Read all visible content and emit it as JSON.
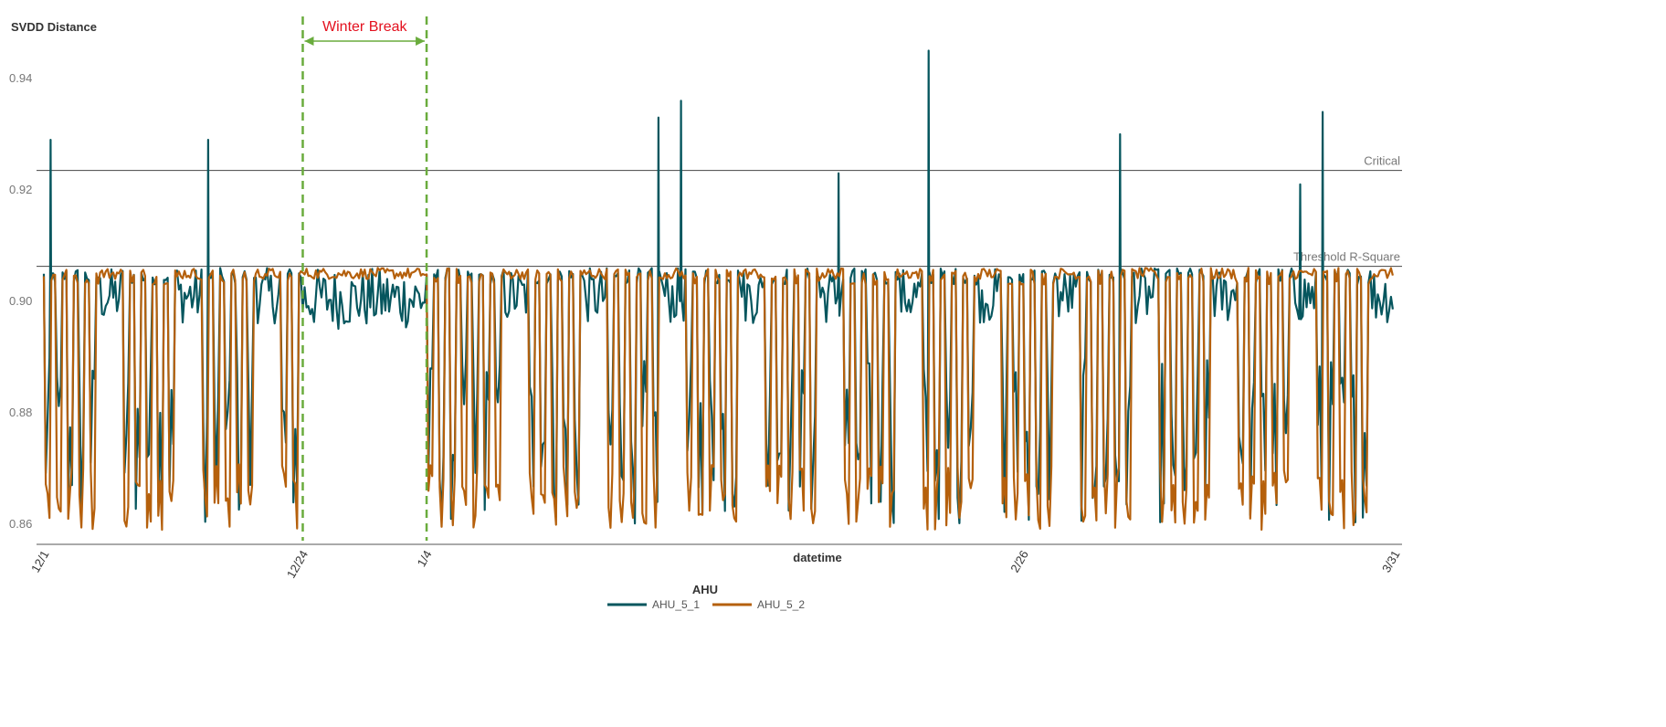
{
  "chart_data": {
    "type": "line",
    "title": "",
    "ylabel": "SVDD Distance",
    "xlabel": "datetime",
    "ylim": [
      0.857,
      0.95
    ],
    "yticks": [
      "0.86",
      "0.88",
      "0.90",
      "0.92",
      "0.94"
    ],
    "xtick_labels": [
      "12/1",
      "12/24",
      "1/4",
      "2/26",
      "3/31"
    ],
    "x_range": [
      "12/1",
      "3/31"
    ],
    "grid": false,
    "legend": {
      "title": "AHU",
      "placement": "bottom-center",
      "entries": [
        "AHU_5_1",
        "AHU_5_2"
      ]
    },
    "reference_lines": [
      {
        "label": "Critical",
        "y": 0.9235
      },
      {
        "label": "Threshold R-Square",
        "y": 0.9063
      }
    ],
    "annotation": {
      "label": "Winter Break",
      "start": "12/24",
      "end": "1/4",
      "color": "#e3101e",
      "line_color": "#6aac3d"
    },
    "series": [
      {
        "name": "AHU_5_1",
        "color": "#06565e",
        "summary": "Mostly near 0.904-0.906 with daily dips toward 0.86-0.89; flat 0.895-0.905 during Winter Break; occasional spikes above Critical",
        "spikes": [
          {
            "x": "12/1",
            "y": 0.929
          },
          {
            "x": "12/15",
            "y": 0.929
          },
          {
            "x": "1/24",
            "y": 0.933
          },
          {
            "x": "1/26",
            "y": 0.936
          },
          {
            "x": "2/9",
            "y": 0.923
          },
          {
            "x": "2/17",
            "y": 0.945
          },
          {
            "x": "3/6",
            "y": 0.93
          },
          {
            "x": "3/24",
            "y": 0.934
          },
          {
            "x": "3/22",
            "y": 0.921
          }
        ]
      },
      {
        "name": "AHU_5_2",
        "color": "#b5600c",
        "summary": "Oscillates daily between ~0.859 and ~0.904; steady near 0.905-0.906 during Winter Break"
      }
    ]
  }
}
